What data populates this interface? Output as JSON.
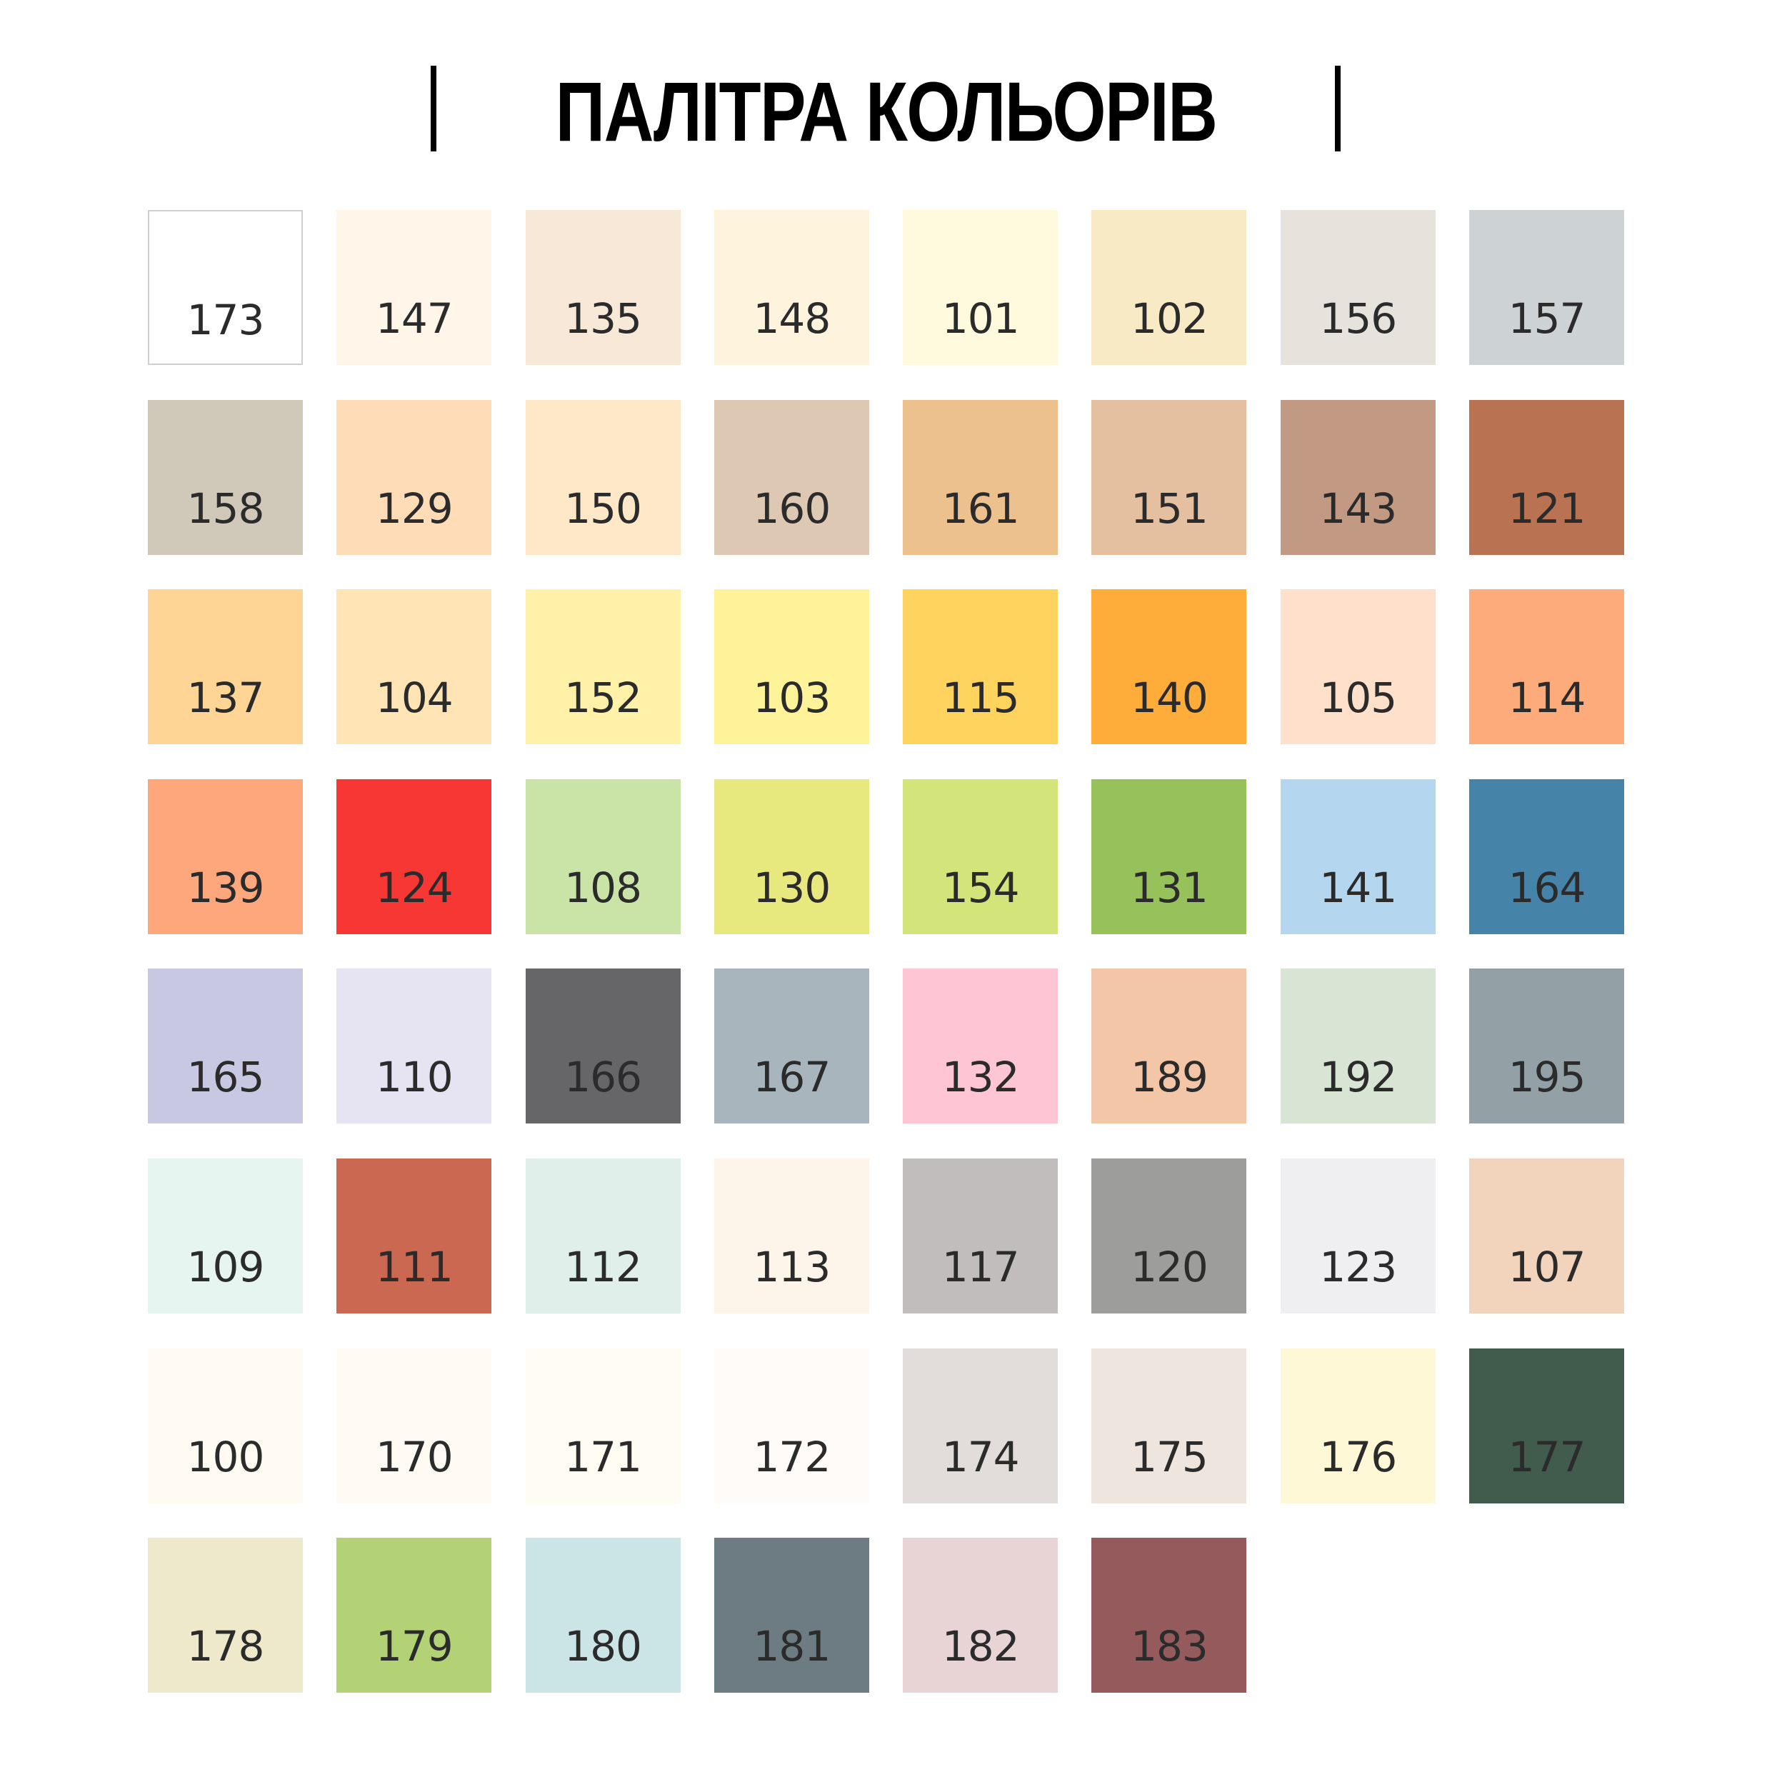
{
  "title": "ПАЛІТРА КОЛЬОРІВ",
  "text_color": "#2b2b2b",
  "swatches": [
    {
      "code": "173",
      "color": "#ffffff"
    },
    {
      "code": "147",
      "color": "#fff5e8"
    },
    {
      "code": "135",
      "color": "#f7e8d8"
    },
    {
      "code": "148",
      "color": "#fef3dc"
    },
    {
      "code": "101",
      "color": "#fffadd"
    },
    {
      "code": "102",
      "color": "#f8eac4"
    },
    {
      "code": "156",
      "color": "#e7e3dc"
    },
    {
      "code": "157",
      "color": "#cdd3d5"
    },
    {
      "code": "158",
      "color": "#d0c9b9"
    },
    {
      "code": "129",
      "color": "#fedcb8"
    },
    {
      "code": "150",
      "color": "#ffe8c8"
    },
    {
      "code": "160",
      "color": "#ddc9b3"
    },
    {
      "code": "161",
      "color": "#ecc18e"
    },
    {
      "code": "151",
      "color": "#e4c0a1"
    },
    {
      "code": "143",
      "color": "#c29a84"
    },
    {
      "code": "121",
      "color": "#ba7352"
    },
    {
      "code": "137",
      "color": "#fed595"
    },
    {
      "code": "104",
      "color": "#ffe4b6"
    },
    {
      "code": "152",
      "color": "#fff2a8"
    },
    {
      "code": "103",
      "color": "#fef398"
    },
    {
      "code": "115",
      "color": "#fed45e"
    },
    {
      "code": "140",
      "color": "#fead3b"
    },
    {
      "code": "105",
      "color": "#ffe0ca"
    },
    {
      "code": "114",
      "color": "#feab7c"
    },
    {
      "code": "139",
      "color": "#fea77c"
    },
    {
      "code": "124",
      "color": "#f73733"
    },
    {
      "code": "108",
      "color": "#cae4a8"
    },
    {
      "code": "130",
      "color": "#e7e97e"
    },
    {
      "code": "154",
      "color": "#d2e47a"
    },
    {
      "code": "131",
      "color": "#97c15b"
    },
    {
      "code": "141",
      "color": "#b4d6ee"
    },
    {
      "code": "164",
      "color": "#4584a8"
    },
    {
      "code": "165",
      "color": "#c8c8e2"
    },
    {
      "code": "110",
      "color": "#e6e4f2"
    },
    {
      "code": "166",
      "color": "#666568"
    },
    {
      "code": "167",
      "color": "#a8b5bd"
    },
    {
      "code": "132",
      "color": "#fec6d4"
    },
    {
      "code": "189",
      "color": "#f4c6a8"
    },
    {
      "code": "192",
      "color": "#d8e4d4"
    },
    {
      "code": "195",
      "color": "#93a0a5"
    },
    {
      "code": "109",
      "color": "#e7f5f1"
    },
    {
      "code": "111",
      "color": "#ca6852"
    },
    {
      "code": "112",
      "color": "#e0efe9"
    },
    {
      "code": "113",
      "color": "#fdf4ea"
    },
    {
      "code": "117",
      "color": "#c2bdbd"
    },
    {
      "code": "120",
      "color": "#9d9d9b"
    },
    {
      "code": "123",
      "color": "#efeff1"
    },
    {
      "code": "107",
      "color": "#f2d4bd"
    },
    {
      "code": "100",
      "color": "#fffaf2"
    },
    {
      "code": "170",
      "color": "#fffaf3"
    },
    {
      "code": "171",
      "color": "#fffcf4"
    },
    {
      "code": "172",
      "color": "#fffbf8"
    },
    {
      "code": "174",
      "color": "#e2ddda"
    },
    {
      "code": "175",
      "color": "#efe5df"
    },
    {
      "code": "176",
      "color": "#fff8d6"
    },
    {
      "code": "177",
      "color": "#415b4c"
    },
    {
      "code": "178",
      "color": "#efe9cc"
    },
    {
      "code": "179",
      "color": "#b3d276"
    },
    {
      "code": "180",
      "color": "#cbe4e5"
    },
    {
      "code": "181",
      "color": "#6d7b82"
    },
    {
      "code": "182",
      "color": "#e8d4d5"
    },
    {
      "code": "183",
      "color": "#955a5b"
    }
  ]
}
